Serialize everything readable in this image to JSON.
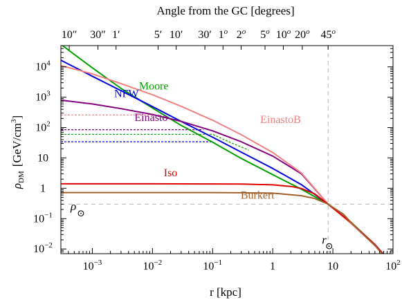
{
  "chart_data": {
    "type": "line",
    "title": "Angle from the GC [degrees]",
    "xlabel": "r [kpc]",
    "ylabel": "ρ",
    "ylabel_sub": "DM",
    "ylabel_unit": "[GeV/cm",
    "ylabel_unit_sup": "3",
    "ylabel_unit_close": "]",
    "xscale": "log",
    "yscale": "log",
    "xlim": [
      0.0003,
      100
    ],
    "ylim": [
      0.007,
      50000
    ],
    "grid": false,
    "x_ticks": [
      {
        "value": 0.001,
        "base": "10",
        "exp": "−3"
      },
      {
        "value": 0.01,
        "base": "10",
        "exp": "−2"
      },
      {
        "value": 0.1,
        "base": "10",
        "exp": "−1"
      },
      {
        "value": 1,
        "base": "1",
        "exp": ""
      },
      {
        "value": 10,
        "base": "10",
        "exp": ""
      },
      {
        "value": 100,
        "base": "10",
        "exp": "2"
      }
    ],
    "y_ticks": [
      {
        "value": 0.01,
        "base": "10",
        "exp": "−2"
      },
      {
        "value": 0.1,
        "base": "10",
        "exp": "−1"
      },
      {
        "value": 1,
        "base": "1",
        "exp": ""
      },
      {
        "value": 10,
        "base": "10",
        "exp": ""
      },
      {
        "value": 100,
        "base": "10",
        "exp": "2"
      },
      {
        "value": 1000,
        "base": "10",
        "exp": "3"
      },
      {
        "value": 10000,
        "base": "10",
        "exp": "4"
      }
    ],
    "top_ticks": [
      {
        "label": "10",
        "mark": "″",
        "x": 0.000413
      },
      {
        "label": "30",
        "mark": "″",
        "x": 0.00124
      },
      {
        "label": "1",
        "mark": "′",
        "x": 0.00248
      },
      {
        "label": "5",
        "mark": "′",
        "x": 0.0124
      },
      {
        "label": "10",
        "mark": "′",
        "x": 0.0248
      },
      {
        "label": "30",
        "mark": "′",
        "x": 0.0744
      },
      {
        "label": "1",
        "mark": "o",
        "x": 0.149
      },
      {
        "label": "2",
        "mark": "o",
        "x": 0.298
      },
      {
        "label": "5",
        "mark": "o",
        "x": 0.744
      },
      {
        "label": "10",
        "mark": "o",
        "x": 1.5
      },
      {
        "label": "20",
        "mark": "o",
        "x": 3.1
      },
      {
        "label": "45",
        "mark": "o",
        "x": 8.33
      }
    ],
    "reference": {
      "r_sun": 8.33,
      "rho_sun": 0.3,
      "r_label": "r",
      "rho_label": "ρ",
      "sun_symbol": "⊙"
    },
    "series": [
      {
        "name": "Moore",
        "color": "#00a000",
        "x": [
          0.0003,
          0.001,
          0.003,
          0.01,
          0.03,
          0.1,
          0.3,
          1,
          3,
          8.33,
          20,
          50,
          70
        ],
        "y": [
          55000,
          9300,
          1950,
          440,
          118,
          33,
          9.6,
          2.8,
          0.93,
          0.3,
          0.076,
          0.014,
          0.0065
        ]
      },
      {
        "name": "NFW",
        "color": "#0000e0",
        "x": [
          0.0003,
          0.001,
          0.003,
          0.01,
          0.03,
          0.1,
          0.3,
          1,
          3,
          8.33,
          20,
          50,
          70
        ],
        "y": [
          16500,
          4900,
          1640,
          490,
          160,
          48,
          15.5,
          4.5,
          1.32,
          0.3,
          0.074,
          0.014,
          0.0066
        ]
      },
      {
        "name": "Einasto",
        "color": "#800080",
        "x": [
          0.0003,
          0.001,
          0.003,
          0.01,
          0.03,
          0.1,
          0.3,
          1,
          3,
          8.33,
          20,
          50,
          70
        ],
        "y": [
          800,
          600,
          420,
          270,
          160,
          78,
          34,
          11.5,
          3.0,
          0.3,
          0.074,
          0.014,
          0.0066
        ]
      },
      {
        "name": "EinastoB",
        "color": "#f08080",
        "x": [
          0.0003,
          0.001,
          0.003,
          0.01,
          0.03,
          0.1,
          0.3,
          1,
          3,
          8.33,
          20,
          50,
          70
        ],
        "y": [
          11000,
          5900,
          2800,
          1200,
          500,
          175,
          58,
          15,
          3.2,
          0.3,
          0.07,
          0.013,
          0.0062
        ]
      },
      {
        "name": "Iso",
        "color": "#e00000",
        "x": [
          0.0003,
          0.001,
          0.01,
          0.1,
          0.3,
          1,
          2,
          3,
          5,
          8.33,
          20,
          50,
          70
        ],
        "y": [
          1.4,
          1.4,
          1.4,
          1.39,
          1.38,
          1.3,
          1.15,
          0.98,
          0.65,
          0.3,
          0.074,
          0.014,
          0.0066
        ]
      },
      {
        "name": "Burkert",
        "color": "#a0602a",
        "x": [
          0.0003,
          0.001,
          0.01,
          0.1,
          0.3,
          1,
          3,
          5,
          8.33,
          15,
          20,
          50,
          70
        ],
        "y": [
          0.72,
          0.72,
          0.72,
          0.72,
          0.71,
          0.69,
          0.57,
          0.46,
          0.3,
          0.14,
          0.075,
          0.013,
          0.0062
        ]
      }
    ],
    "dashed_series": [
      {
        "name": "EinastoB",
        "color": "#f08080",
        "x": [
          0.0003,
          0.013
        ],
        "y": [
          260,
          260
        ]
      },
      {
        "name": "Einasto",
        "color": "#800080",
        "x": [
          0.0003,
          0.07
        ],
        "y": [
          85,
          85
        ]
      },
      {
        "name": "Moore",
        "color": "#00a000",
        "x": [
          0.0003,
          0.1,
          0.2,
          0.4
        ],
        "y": [
          60,
          60,
          32,
          18
        ]
      },
      {
        "name": "NFW",
        "color": "#0000e0",
        "x": [
          0.0003,
          0.1
        ],
        "y": [
          34,
          34
        ]
      }
    ]
  }
}
